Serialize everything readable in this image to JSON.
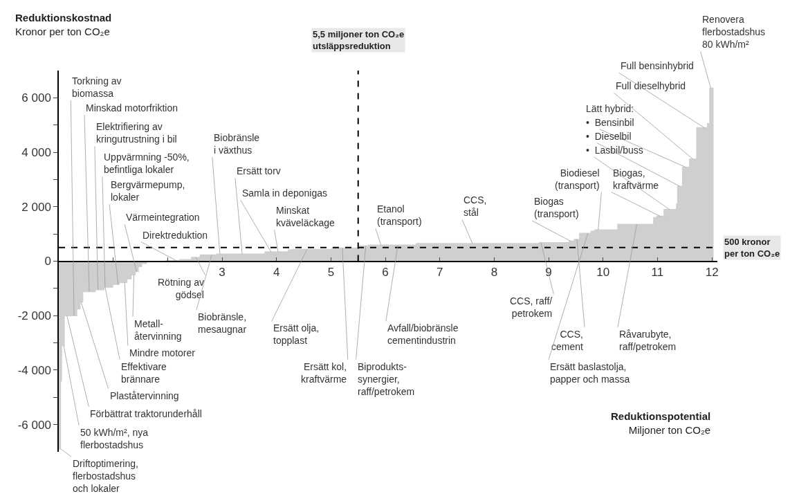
{
  "chart_data": {
    "type": "area",
    "xlabel": "Reduktionspotential\nMiljoner ton CO₂e",
    "ylabel": "Reduktionskostnad\nKronor per ton CO₂e",
    "series": [
      {
        "color": "#cfcfcf",
        "x": [
          0,
          0.03,
          0.05,
          0.1,
          0.33,
          0.39,
          0.44,
          0.67,
          0.83,
          0.99,
          1.11,
          1.25,
          1.33,
          1.4,
          1.46,
          1.52,
          1.61,
          1.97,
          2.22,
          2.44,
          2.6,
          2.9,
          3.79,
          4.22,
          4.29,
          5.02,
          5.53,
          5.69,
          6.57,
          8.83,
          9.38,
          9.47,
          9.57,
          9.78,
          9.85,
          10.27,
          10.93,
          10.99,
          11.12,
          11.35,
          11.37,
          11.46,
          11.59,
          11.72,
          11.92,
          11.96,
          12.03
        ],
        "values": [
          -6900,
          -4400,
          -3100,
          -2000,
          -1750,
          -1500,
          -1120,
          -1050,
          -950,
          -850,
          -780,
          -650,
          -500,
          -380,
          -200,
          -80,
          -20,
          20,
          60,
          140,
          230,
          260,
          340,
          410,
          430,
          480,
          560,
          590,
          650,
          680,
          740,
          800,
          1020,
          1100,
          1150,
          1350,
          1600,
          1650,
          1900,
          2100,
          2750,
          3450,
          3750,
          4900,
          5050,
          6350,
          6350
        ]
      }
    ],
    "xlim": [
      0,
      12.1
    ],
    "ylim": [
      -7000,
      7000
    ],
    "xticks": [
      {
        "value": 1,
        "label": null
      },
      {
        "value": 2,
        "label": null
      },
      3,
      4,
      5,
      6,
      7,
      8,
      9,
      10,
      11,
      12
    ],
    "yticks": [
      {
        "value": -6000,
        "label": "-6 000"
      },
      {
        "value": -5000,
        "label": null
      },
      {
        "value": -4000,
        "label": "-4 000"
      },
      {
        "value": -3000,
        "label": null
      },
      {
        "value": -2000,
        "label": "-2 000"
      },
      {
        "value": -1000,
        "label": null
      },
      0,
      {
        "value": 1000,
        "label": null
      },
      {
        "value": 2000,
        "label": "2 000"
      },
      {
        "value": 3000,
        "label": null
      },
      {
        "value": 4000,
        "label": "4 000"
      },
      {
        "value": 5000,
        "label": null
      },
      {
        "value": 6000,
        "label": "6 000"
      }
    ],
    "ref_lines": [
      {
        "axis": "x",
        "value": 5.5,
        "label": "5,5 miljoner ton CO₂e\nutsläppsreduktion",
        "color": "#000000",
        "line_style": "dashed"
      },
      {
        "axis": "y",
        "value": 500,
        "label": "500 kronor\nper ton CO₂e",
        "color": "#000000",
        "line_style": "dashed"
      }
    ],
    "annotations": [
      {
        "text": "Torkning av\nbiomassa",
        "x": 0.28,
        "y": -2000
      },
      {
        "text": "Minskad motorfriktion",
        "x": 0.56,
        "y": -1120
      },
      {
        "text": "Elektrifiering av\nkringutrustning i bil",
        "x": 0.72,
        "y": -1050
      },
      {
        "text": "Uppvärmning -50%,\nbefintliga lokaler",
        "x": 0.85,
        "y": -950
      },
      {
        "text": "Bergvärmepump,\nlokaler",
        "x": 1.09,
        "y": -850
      },
      {
        "text": "Värmeintegration",
        "x": 1.43,
        "y": -380
      },
      {
        "text": "Direktreduktion",
        "x": 2.16,
        "y": 20
      },
      {
        "text": "Biobränsle\ni växthus",
        "x": 2.96,
        "y": 260
      },
      {
        "text": "Ersätt torv",
        "x": 3.37,
        "y": 260
      },
      {
        "text": "Samla in deponigas",
        "x": 3.9,
        "y": 340
      },
      {
        "text": "Minskat\nkväveläckage",
        "x": 4.03,
        "y": 340
      },
      {
        "text": "Etanol\n(transport)",
        "x": 5.92,
        "y": 590
      },
      {
        "text": "CCS,\nstål",
        "x": 7.6,
        "y": 650
      },
      {
        "text": "Biogas\n(transport)",
        "x": 9.4,
        "y": 740
      },
      {
        "text": "Biodiesel\n(transport)",
        "x": 9.91,
        "y": 1150
      },
      {
        "text": "Biogas,\nkraftvärme",
        "x": 11.05,
        "y": 1650
      },
      "Lätt hybrid:",
      {
        "text": "•  Bensinbil",
        "x": 11.52,
        "y": 3450
      },
      {
        "text": "•  Dieselbil",
        "x": 11.41,
        "y": 2750
      },
      {
        "text": "•  Lasbil/buss",
        "x": 11.22,
        "y": 1900
      },
      {
        "text": "Full dieselhybrid",
        "x": 11.65,
        "y": 3750
      },
      {
        "text": "Full bensinhybrid",
        "x": 11.86,
        "y": 4900
      },
      {
        "text": "Renovera\nflerbostadshus\n80 kWh/m²",
        "x": 11.98,
        "y": 6350
      },
      {
        "text": "Rötning av\ngödsel",
        "x": 2.52,
        "y": 140
      },
      {
        "text": "Biobränsle,\nmesaugnar",
        "x": 2.81,
        "y": 230
      },
      {
        "text": "Metall-\nåtervinning",
        "x": 1.38,
        "y": -500
      },
      {
        "text": "Mindre motorer",
        "x": 1.21,
        "y": -780
      },
      {
        "text": "Effektivare\nbrännare",
        "x": 0.85,
        "y": -950
      },
      {
        "text": "Plaståtervinning",
        "x": 0.41,
        "y": -1500
      },
      {
        "text": "Förbättrat traktorunderhåll",
        "x": 0.15,
        "y": -2000
      },
      {
        "text": "50 kWh/m², nya\nflerbostadshus",
        "x": 0.09,
        "y": -3100
      },
      {
        "text": "Driftoptimering,\nflerbostadshus\noch lokaler",
        "x": 0.04,
        "y": -6900
      },
      {
        "text": "Ersätt olja,\ntopplast",
        "x": 4.56,
        "y": 430
      },
      {
        "text": "Ersätt kol,\nkraftvärme",
        "x": 5.21,
        "y": 480
      },
      {
        "text": "Biprodukts-\nsynergier,\nraff/petrokem",
        "x": 5.64,
        "y": 560
      },
      {
        "text": "Avfall/biobränsle\ncementindustrin",
        "x": 6.23,
        "y": 590
      },
      {
        "text": "CCS, raff/\npetrokem",
        "x": 8.86,
        "y": 680
      },
      {
        "text": "CCS,\ncement",
        "x": 9.52,
        "y": 800
      },
      {
        "text": "Ersätt baslastolja,\npapper och massa",
        "x": 9.72,
        "y": 1020
      },
      {
        "text": "Råvarubyte,\nraff/petrokem",
        "x": 10.62,
        "y": 1350
      }
    ]
  }
}
